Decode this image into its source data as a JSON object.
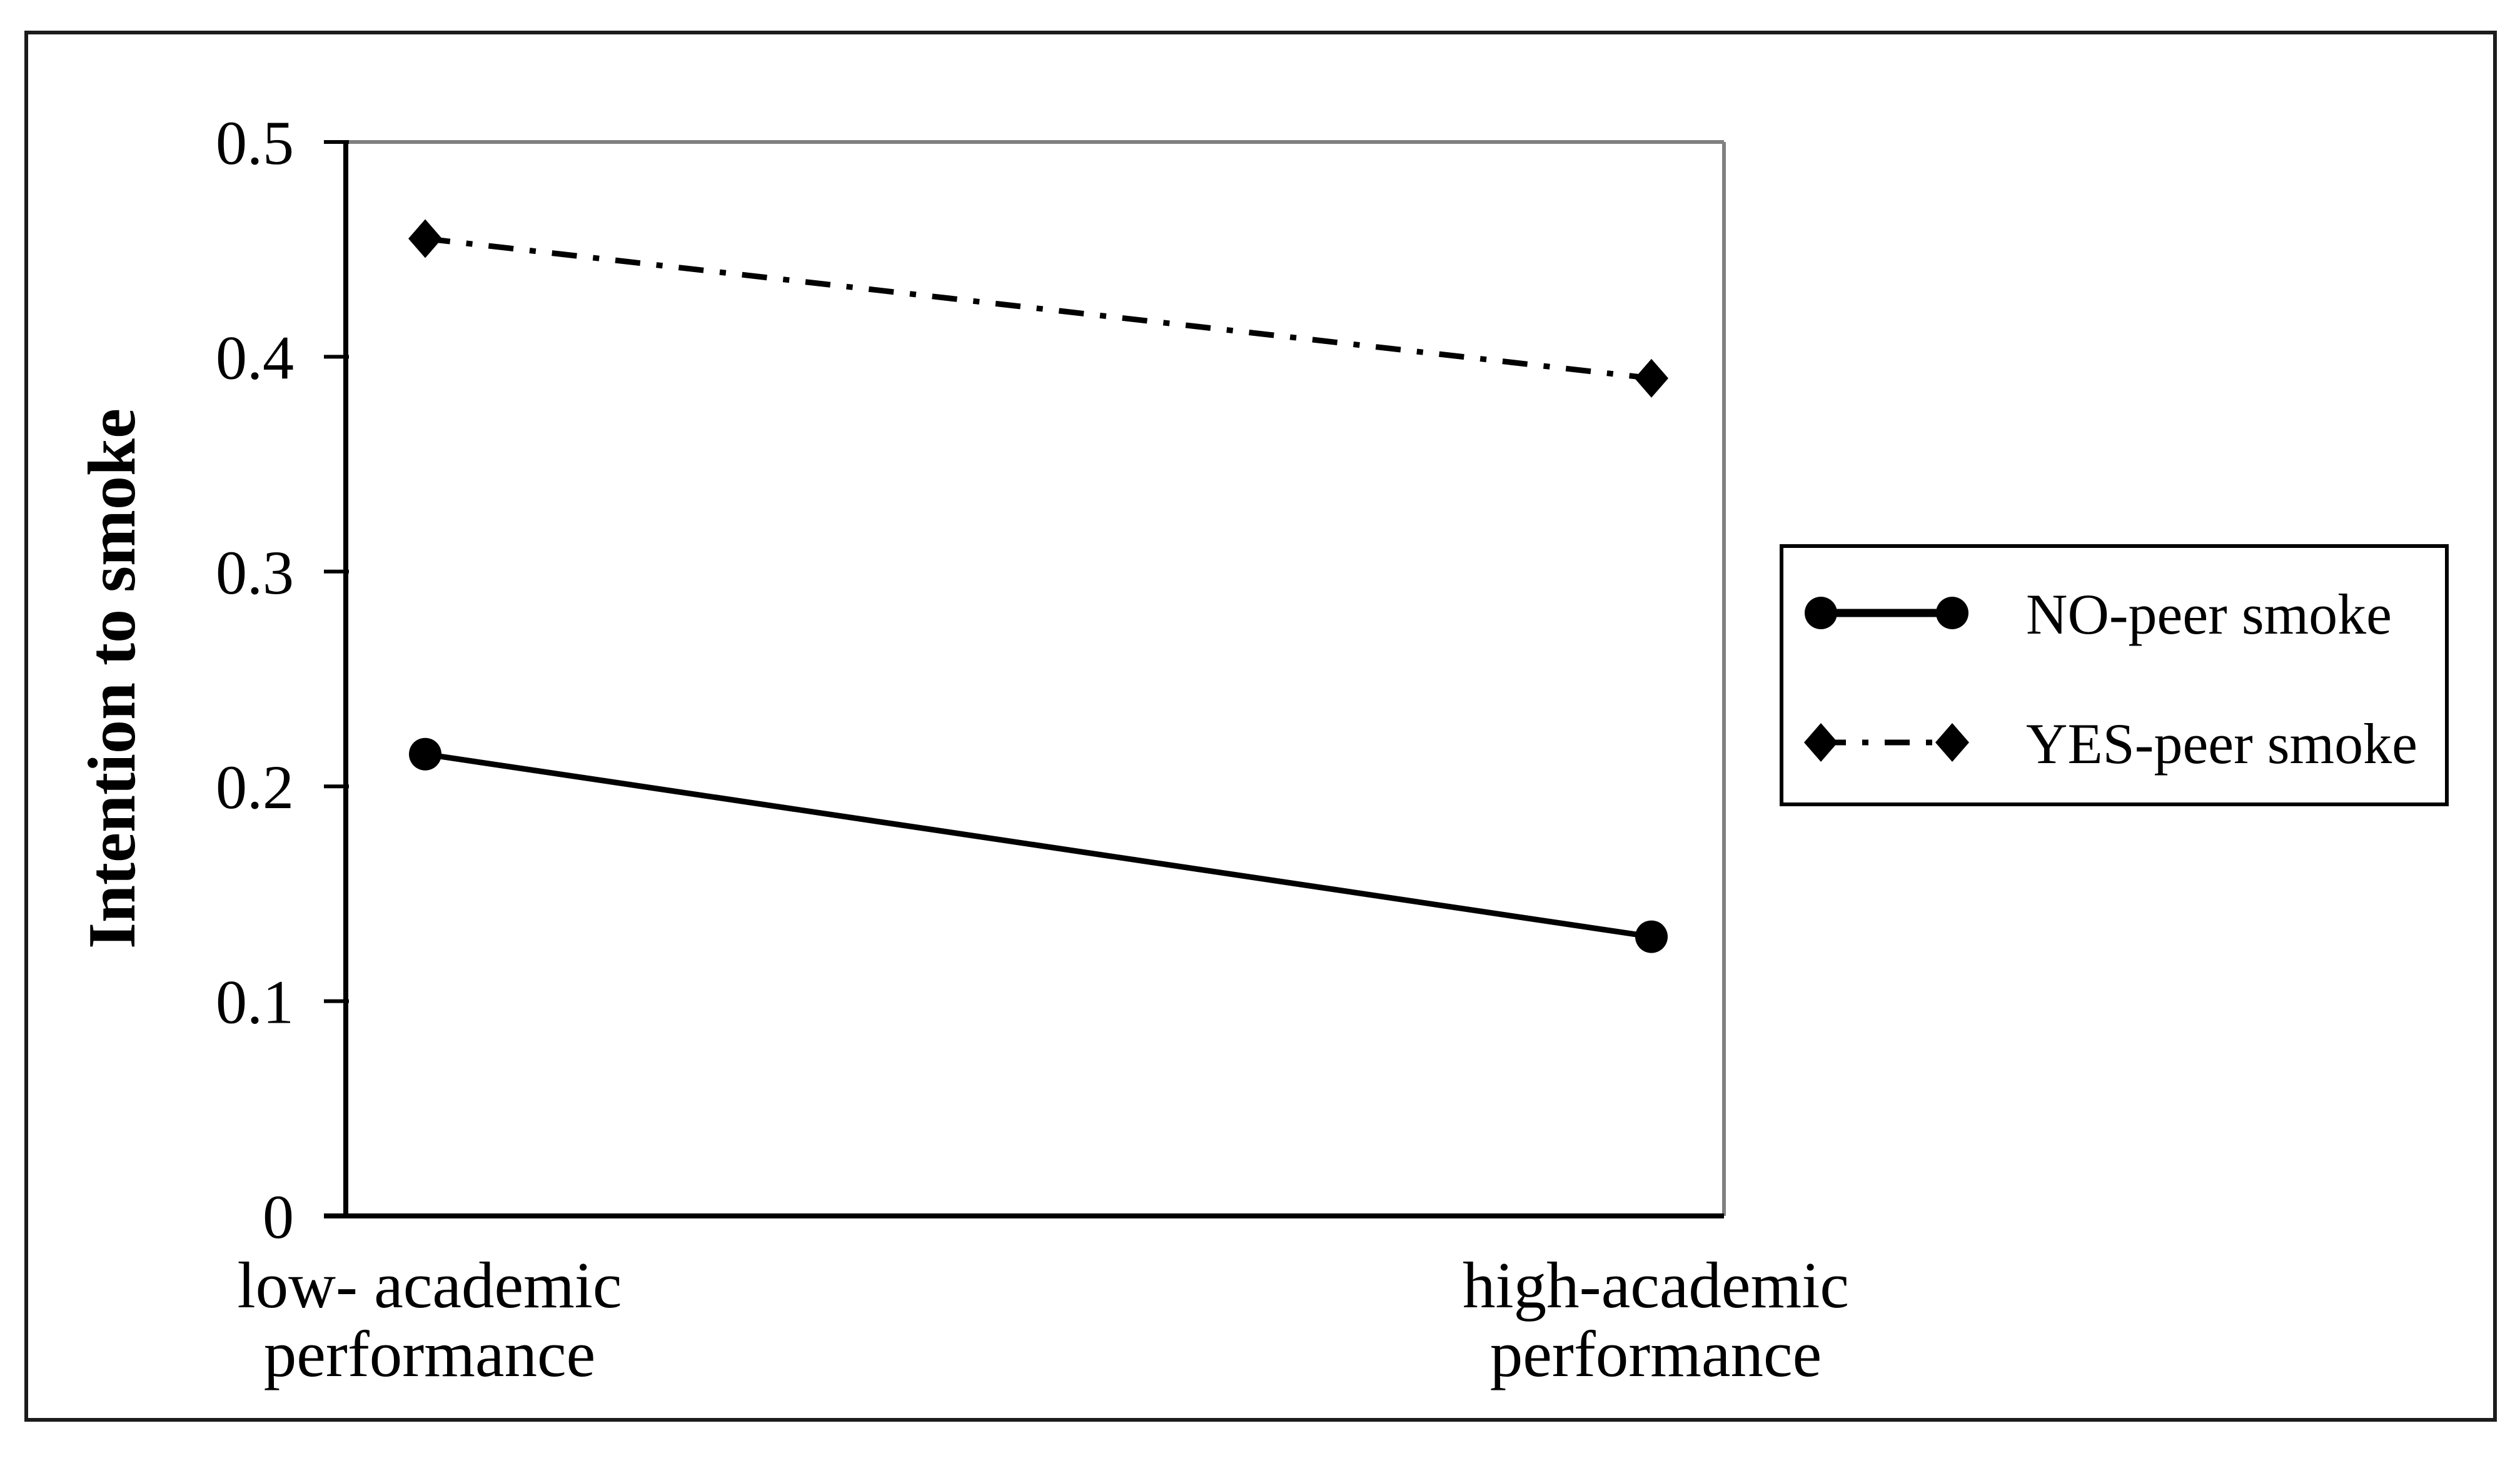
{
  "figure": {
    "background": "#ffffff",
    "border_color": "#1c1c1c",
    "axis_color": "#000000",
    "frame_secondary_color": "#808080"
  },
  "chart_data": {
    "type": "line",
    "title": "",
    "xlabel": "",
    "ylabel": "Intention to smoke",
    "ylim": [
      0,
      0.5
    ],
    "grid": false,
    "legend_position": "right-inside-box",
    "y_ticks": [
      {
        "value": 0,
        "label": "0"
      },
      {
        "value": 0.1,
        "label": "0.1"
      },
      {
        "value": 0.2,
        "label": "0.2"
      },
      {
        "value": 0.3,
        "label": "0.3"
      },
      {
        "value": 0.4,
        "label": "0.4"
      },
      {
        "value": 0.5,
        "label": "0.5"
      }
    ],
    "categories": [
      "low- academic performance",
      "high-academic performance"
    ],
    "category_label_lines": [
      [
        "low- academic",
        "performance"
      ],
      [
        "high-academic",
        "performance"
      ]
    ],
    "series": [
      {
        "name": "NO-peer smoke",
        "marker": "circle",
        "line_style": "solid",
        "color": "#000000",
        "values": [
          0.215,
          0.13
        ]
      },
      {
        "name": "YES-peer smoke",
        "marker": "diamond",
        "line_style": "dashdot",
        "color": "#000000",
        "values": [
          0.455,
          0.39
        ]
      }
    ]
  }
}
